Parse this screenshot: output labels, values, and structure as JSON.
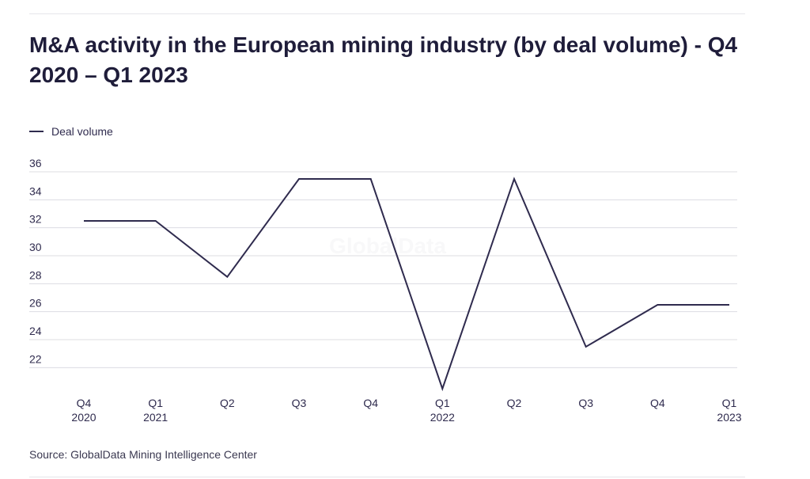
{
  "title": "M&A activity in the European mining industry (by deal volume) - Q4 2020 – Q1 2023",
  "source": "Source: GlobalData Mining Intelligence Center",
  "watermark": "GlobalData",
  "legend": {
    "label": "Deal volume"
  },
  "colors": {
    "line": "#2f2b4e",
    "grid": "#dcdce2",
    "text": "#1f1d3a"
  },
  "chart_data": {
    "type": "line",
    "categories": [
      "Q4 2020",
      "Q1 2021",
      "Q2",
      "Q3",
      "Q4",
      "Q1 2022",
      "Q2",
      "Q3",
      "Q4",
      "Q1 2023"
    ],
    "x_tick_labels": [
      [
        "Q4",
        "2020"
      ],
      [
        "Q1",
        "2021"
      ],
      [
        "Q2"
      ],
      [
        "Q3"
      ],
      [
        "Q4"
      ],
      [
        "Q1",
        "2022"
      ],
      [
        "Q2"
      ],
      [
        "Q3"
      ],
      [
        "Q4"
      ],
      [
        "Q1",
        "2023"
      ]
    ],
    "series": [
      {
        "name": "Deal volume",
        "values": [
          33,
          33,
          29,
          36,
          36,
          21,
          36,
          24,
          27,
          27
        ]
      }
    ],
    "y_ticks": [
      22,
      24,
      26,
      28,
      30,
      32,
      34,
      36
    ],
    "ylim": [
      21,
      36
    ],
    "grid": true,
    "legend_position": "top-left"
  }
}
